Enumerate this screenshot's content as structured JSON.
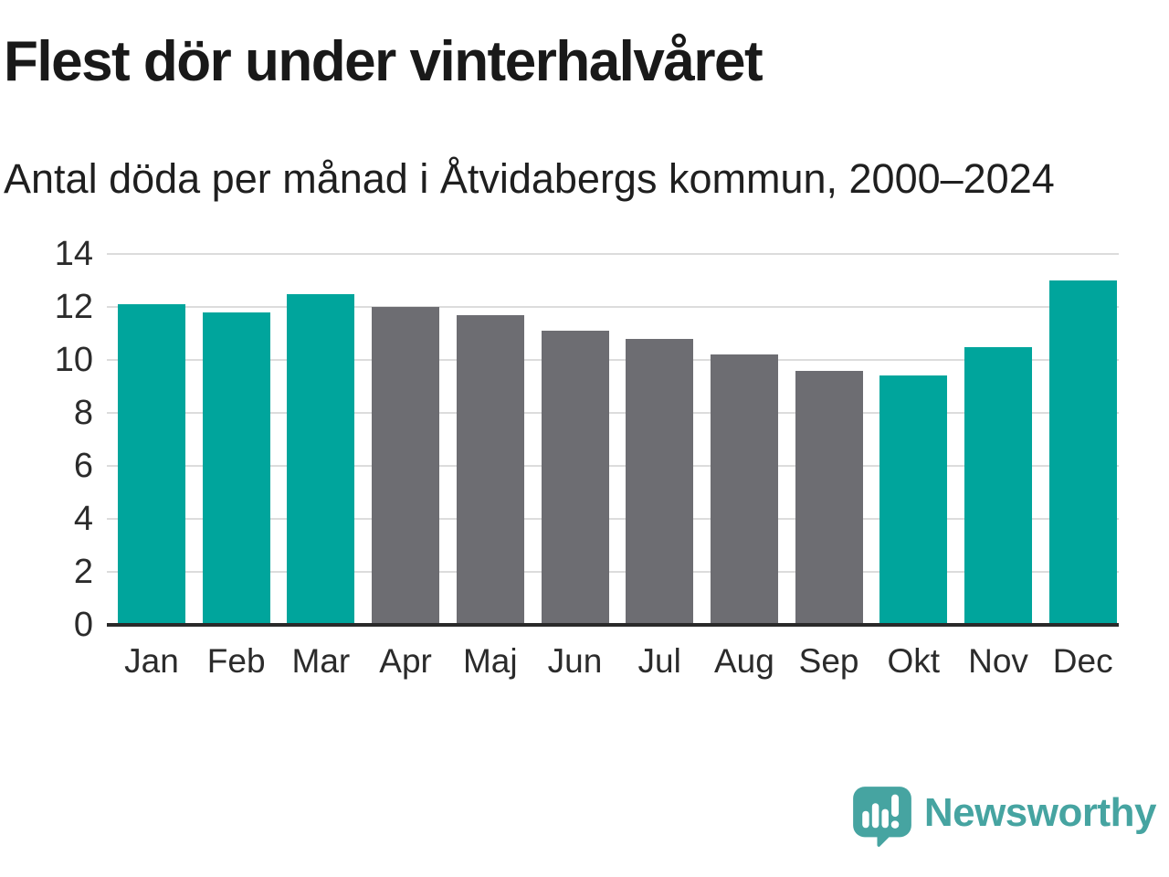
{
  "title": "Flest dör under vinterhalvåret",
  "subtitle": "Antal döda per månad i Åtvidabergs kommun, 2000–2024",
  "branding": {
    "logo_text": "Newsworthy",
    "logo_icon": "speech-bubble-bar-chart-exclamation",
    "logo_color": "#46a4a1"
  },
  "colors": {
    "winter": "#00a59c",
    "summer": "#6d6d72",
    "gridline": "#dcdcdc",
    "axis": "#2a2a2a",
    "text": "#1f1f1f"
  },
  "chart_data": {
    "type": "bar",
    "title": "Flest dör under vinterhalvåret",
    "subtitle": "Antal döda per månad i Åtvidabergs kommun, 2000–2024",
    "categories": [
      "Jan",
      "Feb",
      "Mar",
      "Apr",
      "Maj",
      "Jun",
      "Jul",
      "Aug",
      "Sep",
      "Okt",
      "Nov",
      "Dec"
    ],
    "values": [
      12.1,
      11.8,
      12.5,
      12.0,
      11.7,
      11.1,
      10.8,
      10.2,
      9.6,
      9.4,
      10.5,
      13.0
    ],
    "bar_groups": [
      "winter",
      "winter",
      "winter",
      "summer",
      "summer",
      "summer",
      "summer",
      "summer",
      "summer",
      "winter",
      "winter",
      "winter"
    ],
    "xlabel": "",
    "ylabel": "",
    "ylim": [
      0,
      14
    ],
    "yticks": [
      0,
      2,
      4,
      6,
      8,
      10,
      12,
      14
    ],
    "grid": true,
    "legend": false
  }
}
